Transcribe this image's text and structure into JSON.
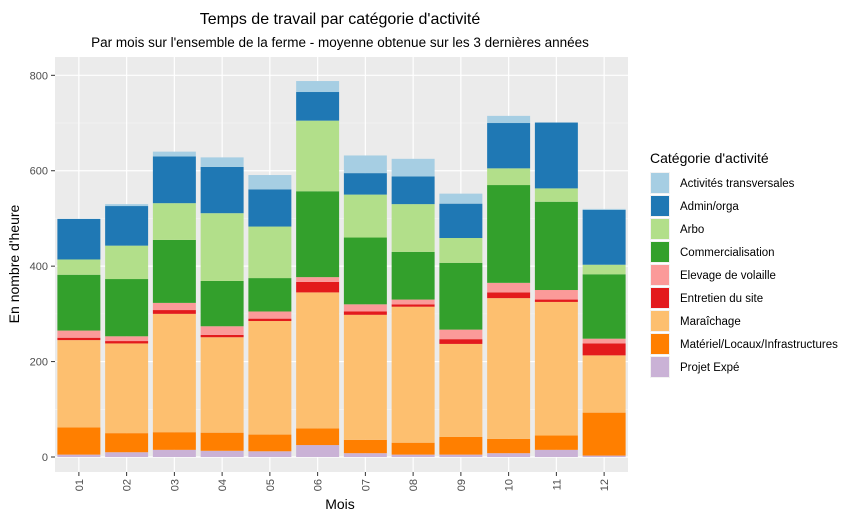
{
  "chart_data": {
    "type": "bar",
    "stacked": true,
    "title": "Temps de travail par catégorie d'activité",
    "subtitle": "Par mois sur l'ensemble de la ferme - moyenne obtenue sur les 3 dernières années",
    "xlabel": "Mois",
    "ylabel": "En nombre d'heure",
    "ylim": [
      0,
      830
    ],
    "yticks": [
      0,
      200,
      400,
      600,
      800
    ],
    "grid": true,
    "legend_title": "Catégorie d'activité",
    "legend_position": "right",
    "categories": [
      "01",
      "02",
      "03",
      "04",
      "05",
      "06",
      "07",
      "08",
      "09",
      "10",
      "11",
      "12"
    ],
    "series": [
      {
        "name": "Projet Expé",
        "color": "#CAB2D6",
        "values": [
          5,
          10,
          15,
          13,
          12,
          25,
          8,
          5,
          5,
          8,
          15,
          3
        ]
      },
      {
        "name": "Matériel/Locaux/Infrastructures",
        "color": "#FF7F00",
        "values": [
          57,
          40,
          37,
          38,
          35,
          35,
          28,
          25,
          37,
          30,
          30,
          90
        ]
      },
      {
        "name": "Maraîchage",
        "color": "#FDBF6F",
        "values": [
          183,
          188,
          248,
          200,
          238,
          285,
          262,
          285,
          195,
          295,
          280,
          120
        ]
      },
      {
        "name": "Entretien du site",
        "color": "#E31A1C",
        "values": [
          5,
          5,
          8,
          5,
          5,
          22,
          7,
          5,
          10,
          12,
          5,
          25
        ]
      },
      {
        "name": "Elevage de volaille",
        "color": "#FB9A99",
        "values": [
          15,
          10,
          15,
          18,
          15,
          10,
          15,
          10,
          20,
          20,
          20,
          10
        ]
      },
      {
        "name": "Commercialisation",
        "color": "#33A02C",
        "values": [
          117,
          120,
          132,
          95,
          70,
          180,
          140,
          100,
          140,
          205,
          185,
          135
        ]
      },
      {
        "name": "Arbo",
        "color": "#B2DF8A",
        "values": [
          32,
          70,
          77,
          142,
          108,
          148,
          90,
          100,
          52,
          35,
          28,
          20
        ]
      },
      {
        "name": "Admin/orga",
        "color": "#1F78B4",
        "values": [
          85,
          83,
          98,
          97,
          78,
          60,
          45,
          58,
          72,
          95,
          138,
          115
        ]
      },
      {
        "name": "Activités transversales",
        "color": "#A6CEE3",
        "values": [
          0,
          4,
          10,
          20,
          30,
          23,
          37,
          37,
          21,
          15,
          0,
          2
        ]
      }
    ]
  }
}
